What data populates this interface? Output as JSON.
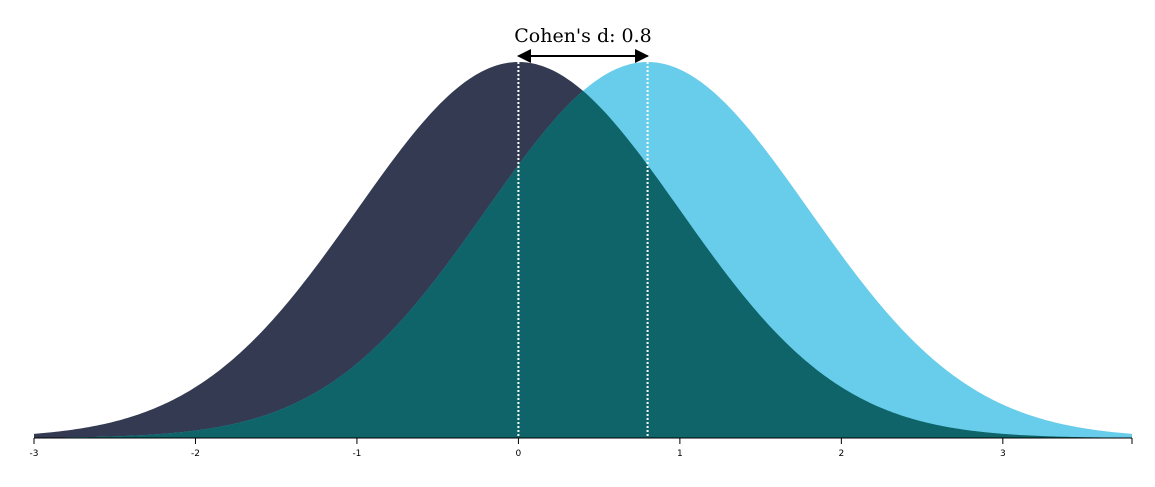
{
  "chart_data": {
    "type": "area",
    "title": "",
    "xlabel": "",
    "ylabel": "",
    "xlim": [
      -3,
      3.8
    ],
    "x_ticks": [
      -3,
      -2,
      -1,
      0,
      1,
      2,
      3
    ],
    "grid": false,
    "series": [
      {
        "distribution": "normal",
        "mean": 0,
        "sd": 1,
        "color": "#333a52"
      },
      {
        "distribution": "normal",
        "mean": 0.8,
        "sd": 1,
        "color": "#68cdea"
      }
    ],
    "overlap_color": "#0e6468",
    "annotation": {
      "label": "Cohen's d: 0.8",
      "from": 0,
      "to": 0.8
    }
  }
}
